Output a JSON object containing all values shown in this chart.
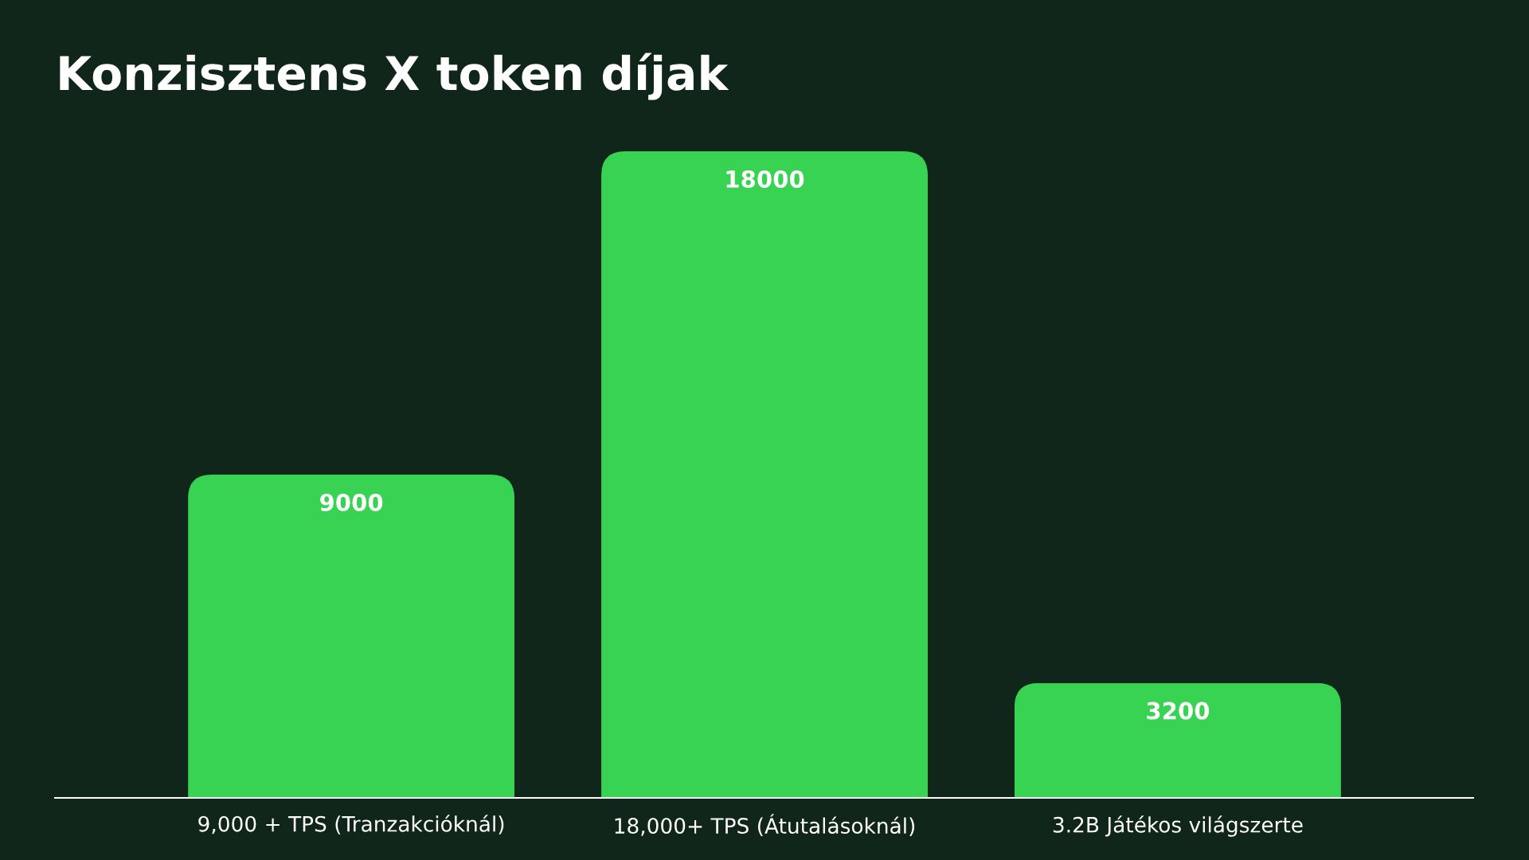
{
  "chart_data": {
    "type": "bar",
    "title": "Konzisztens X token díjak",
    "categories": [
      "9,000 + TPS (Tranzakcióknál)",
      "18,000+ TPS (Átutalásoknál)",
      "3.2B Játékos világszerte"
    ],
    "values": [
      9000,
      18000,
      3200
    ],
    "color": "#39d353",
    "data_labels": true,
    "tick_labels": "x"
  }
}
